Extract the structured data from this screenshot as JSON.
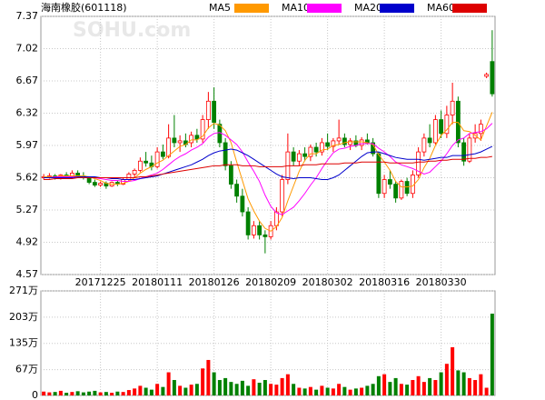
{
  "chart_data": [
    {
      "type": "candlestick",
      "title": "海南橡胶(601118)",
      "watermark": "SOHU.com",
      "categories": [
        null,
        null,
        null,
        null,
        null,
        null,
        null,
        null,
        null,
        null,
        "20171225",
        null,
        null,
        null,
        null,
        null,
        null,
        null,
        null,
        null,
        "20180111",
        null,
        null,
        null,
        null,
        null,
        null,
        null,
        null,
        null,
        "20180126",
        null,
        null,
        null,
        null,
        null,
        null,
        null,
        null,
        null,
        "20180209",
        null,
        null,
        null,
        null,
        null,
        null,
        null,
        null,
        null,
        "20180302",
        null,
        null,
        null,
        null,
        null,
        null,
        null,
        null,
        null,
        "20180316",
        null,
        null,
        null,
        null,
        null,
        null,
        null,
        null,
        null,
        "20180330",
        null,
        null,
        null,
        null,
        null,
        null,
        null,
        null,
        null
      ],
      "open": [
        5.62,
        5.63,
        5.64,
        5.62,
        5.65,
        5.63,
        5.67,
        5.64,
        5.62,
        5.57,
        5.54,
        5.56,
        5.53,
        5.57,
        5.55,
        5.6,
        5.66,
        5.7,
        5.8,
        5.78,
        5.74,
        5.9,
        5.85,
        6.05,
        6.0,
        6.02,
        6.0,
        6.08,
        6.04,
        6.25,
        6.45,
        6.2,
        6.0,
        5.75,
        5.55,
        5.42,
        5.25,
        5.0,
        5.1,
        5.0,
        4.98,
        5.1,
        5.25,
        5.6,
        5.9,
        5.8,
        5.88,
        5.85,
        5.95,
        5.9,
        6.0,
        5.96,
        6.02,
        6.05,
        5.98,
        6.02,
        5.97,
        6.03,
        6.0,
        5.88,
        5.45,
        5.6,
        5.55,
        5.4,
        5.58,
        5.45,
        5.65,
        5.9,
        6.05,
        6.0,
        6.25,
        6.1,
        6.3,
        6.45,
        6.0,
        5.8,
        6.05,
        6.1,
        6.72,
        6.88
      ],
      "high": [
        5.66,
        5.67,
        5.66,
        5.66,
        5.68,
        5.7,
        5.7,
        5.68,
        5.63,
        5.6,
        5.58,
        5.58,
        5.58,
        5.59,
        5.62,
        5.68,
        5.72,
        5.84,
        5.9,
        5.86,
        5.95,
        5.98,
        6.2,
        6.3,
        6.08,
        6.1,
        6.12,
        6.15,
        6.3,
        6.55,
        6.6,
        6.25,
        6.05,
        5.8,
        5.6,
        5.5,
        5.3,
        5.15,
        5.15,
        5.05,
        5.15,
        5.3,
        5.65,
        6.1,
        5.95,
        5.92,
        5.95,
        5.98,
        6.0,
        6.05,
        6.1,
        6.05,
        6.25,
        6.1,
        6.05,
        6.08,
        6.06,
        6.1,
        6.05,
        5.9,
        5.65,
        5.7,
        5.58,
        5.6,
        5.62,
        5.7,
        5.95,
        6.1,
        6.2,
        6.3,
        6.35,
        6.4,
        6.65,
        6.5,
        6.05,
        6.1,
        6.2,
        6.25,
        6.76,
        7.22
      ],
      "low": [
        5.6,
        5.61,
        5.6,
        5.6,
        5.62,
        5.61,
        5.62,
        5.6,
        5.55,
        5.52,
        5.52,
        5.5,
        5.52,
        5.53,
        5.54,
        5.58,
        5.62,
        5.68,
        5.74,
        5.7,
        5.72,
        5.82,
        5.83,
        5.95,
        5.9,
        5.95,
        5.95,
        6.0,
        6.0,
        6.15,
        6.15,
        5.95,
        5.7,
        5.5,
        5.35,
        5.2,
        4.95,
        4.96,
        4.95,
        4.8,
        4.95,
        5.05,
        5.2,
        5.55,
        5.75,
        5.75,
        5.8,
        5.8,
        5.85,
        5.86,
        5.92,
        5.9,
        5.98,
        5.95,
        5.92,
        5.95,
        5.92,
        5.98,
        5.85,
        5.4,
        5.4,
        5.5,
        5.35,
        5.38,
        5.42,
        5.4,
        5.62,
        5.85,
        5.95,
        5.98,
        6.05,
        6.05,
        6.2,
        5.95,
        5.75,
        5.78,
        6.0,
        6.02,
        6.7,
        6.5
      ],
      "close": [
        5.63,
        5.64,
        5.62,
        5.65,
        5.63,
        5.67,
        5.64,
        5.62,
        5.57,
        5.54,
        5.56,
        5.53,
        5.57,
        5.55,
        5.6,
        5.66,
        5.7,
        5.8,
        5.78,
        5.74,
        5.9,
        5.85,
        6.05,
        6.0,
        6.02,
        5.98,
        6.08,
        6.04,
        6.25,
        6.45,
        6.22,
        6.0,
        5.75,
        5.55,
        5.42,
        5.25,
        5.0,
        5.1,
        5.0,
        4.98,
        5.1,
        5.25,
        5.6,
        5.9,
        5.8,
        5.88,
        5.85,
        5.95,
        5.9,
        6.0,
        5.96,
        6.02,
        6.05,
        5.98,
        6.02,
        5.97,
        6.03,
        6.0,
        5.88,
        5.45,
        5.6,
        5.55,
        5.4,
        5.58,
        5.45,
        5.65,
        5.9,
        6.05,
        6.0,
        6.25,
        6.1,
        6.3,
        6.45,
        6.0,
        5.8,
        6.05,
        6.1,
        6.2,
        6.74,
        6.53
      ],
      "up_color": "#ff0000",
      "down_color": "#008000",
      "series": [
        {
          "name": "MA5",
          "color": "#ff9900",
          "values": [
            5.63,
            5.63,
            5.63,
            5.64,
            5.64,
            5.64,
            5.64,
            5.64,
            5.63,
            5.61,
            5.59,
            5.56,
            5.55,
            5.55,
            5.56,
            5.58,
            5.62,
            5.67,
            5.71,
            5.74,
            5.78,
            5.81,
            5.86,
            5.91,
            5.96,
            5.98,
            6.03,
            6.03,
            6.07,
            6.16,
            6.21,
            6.19,
            6.13,
            6.0,
            5.79,
            5.59,
            5.39,
            5.26,
            5.15,
            5.07,
            5.04,
            5.09,
            5.19,
            5.37,
            5.53,
            5.69,
            5.81,
            5.88,
            5.88,
            5.92,
            5.93,
            5.97,
            5.98,
            6.0,
            6.01,
            6.01,
            6.01,
            6.0,
            5.98,
            5.87,
            5.79,
            5.7,
            5.58,
            5.52,
            5.52,
            5.53,
            5.6,
            5.73,
            5.83,
            5.97,
            6.08,
            6.14,
            6.22,
            6.22,
            6.13,
            6.12,
            6.08,
            6.03,
            6.18,
            6.33
          ]
        },
        {
          "name": "MA10",
          "color": "#ff00ff",
          "values": [
            5.62,
            5.62,
            5.63,
            5.63,
            5.63,
            5.63,
            5.63,
            5.63,
            5.63,
            5.62,
            5.61,
            5.6,
            5.59,
            5.59,
            5.58,
            5.58,
            5.59,
            5.61,
            5.63,
            5.65,
            5.67,
            5.71,
            5.76,
            5.81,
            5.85,
            5.88,
            5.92,
            5.95,
            5.99,
            6.06,
            6.1,
            6.11,
            6.08,
            6.03,
            5.98,
            5.9,
            5.79,
            5.69,
            5.58,
            5.43,
            5.31,
            5.24,
            5.22,
            5.26,
            5.3,
            5.37,
            5.45,
            5.54,
            5.62,
            5.72,
            5.81,
            5.89,
            5.93,
            5.94,
            5.96,
            5.97,
            5.99,
            5.99,
            5.99,
            5.94,
            5.9,
            5.85,
            5.79,
            5.76,
            5.74,
            5.72,
            5.69,
            5.66,
            5.68,
            5.74,
            5.8,
            5.88,
            5.97,
            6.03,
            6.05,
            6.1,
            6.11,
            6.12,
            6.15,
            6.21
          ]
        },
        {
          "name": "MA20",
          "color": "#0000cc",
          "values": [
            5.62,
            5.62,
            5.62,
            5.62,
            5.62,
            5.62,
            5.63,
            5.63,
            5.63,
            5.63,
            5.62,
            5.62,
            5.61,
            5.61,
            5.6,
            5.6,
            5.6,
            5.61,
            5.62,
            5.63,
            5.64,
            5.66,
            5.68,
            5.7,
            5.72,
            5.74,
            5.76,
            5.79,
            5.82,
            5.86,
            5.89,
            5.91,
            5.92,
            5.93,
            5.92,
            5.89,
            5.86,
            5.82,
            5.78,
            5.74,
            5.7,
            5.66,
            5.63,
            5.62,
            5.61,
            5.62,
            5.62,
            5.62,
            5.61,
            5.6,
            5.6,
            5.62,
            5.65,
            5.7,
            5.75,
            5.8,
            5.85,
            5.89,
            5.9,
            5.9,
            5.88,
            5.86,
            5.84,
            5.83,
            5.82,
            5.82,
            5.82,
            5.81,
            5.82,
            5.83,
            5.84,
            5.84,
            5.86,
            5.86,
            5.86,
            5.87,
            5.88,
            5.9,
            5.93,
            5.96
          ]
        },
        {
          "name": "MA60",
          "color": "#dd0000",
          "values": [
            5.6,
            5.6,
            5.61,
            5.61,
            5.61,
            5.61,
            5.62,
            5.62,
            5.62,
            5.62,
            5.62,
            5.62,
            5.62,
            5.62,
            5.62,
            5.62,
            5.62,
            5.63,
            5.63,
            5.64,
            5.65,
            5.66,
            5.67,
            5.68,
            5.69,
            5.7,
            5.71,
            5.72,
            5.73,
            5.74,
            5.75,
            5.75,
            5.76,
            5.76,
            5.76,
            5.75,
            5.75,
            5.75,
            5.74,
            5.74,
            5.74,
            5.74,
            5.74,
            5.75,
            5.75,
            5.75,
            5.76,
            5.76,
            5.76,
            5.77,
            5.77,
            5.77,
            5.77,
            5.78,
            5.78,
            5.78,
            5.79,
            5.79,
            5.79,
            5.79,
            5.79,
            5.78,
            5.78,
            5.78,
            5.78,
            5.78,
            5.79,
            5.79,
            5.8,
            5.8,
            5.81,
            5.81,
            5.82,
            5.82,
            5.82,
            5.83,
            5.83,
            5.84,
            5.84,
            5.85
          ]
        }
      ],
      "ylim": [
        4.57,
        7.37
      ],
      "yticks": [
        4.57,
        4.92,
        5.27,
        5.62,
        5.97,
        6.32,
        6.67,
        7.02,
        7.37
      ],
      "grid": true
    },
    {
      "type": "bar",
      "values": [
        10,
        8,
        9,
        12,
        7,
        9,
        11,
        8,
        10,
        12,
        8,
        9,
        7,
        10,
        9,
        14,
        18,
        25,
        20,
        15,
        30,
        22,
        60,
        40,
        25,
        20,
        28,
        30,
        70,
        92,
        60,
        40,
        45,
        35,
        30,
        38,
        25,
        42,
        33,
        40,
        30,
        28,
        45,
        55,
        30,
        20,
        18,
        22,
        15,
        25,
        20,
        18,
        30,
        22,
        15,
        18,
        20,
        25,
        30,
        50,
        55,
        35,
        45,
        30,
        28,
        40,
        50,
        35,
        45,
        40,
        60,
        82,
        125,
        65,
        60,
        45,
        40,
        55,
        20,
        212
      ],
      "ylim": [
        0,
        271
      ],
      "yticks": [
        0,
        {
          "value": 67,
          "label": "67万"
        },
        {
          "value": 135,
          "label": "135万"
        },
        {
          "value": 203,
          "label": "203万"
        },
        {
          "value": 271,
          "label": "271万"
        }
      ],
      "grid": true
    }
  ]
}
